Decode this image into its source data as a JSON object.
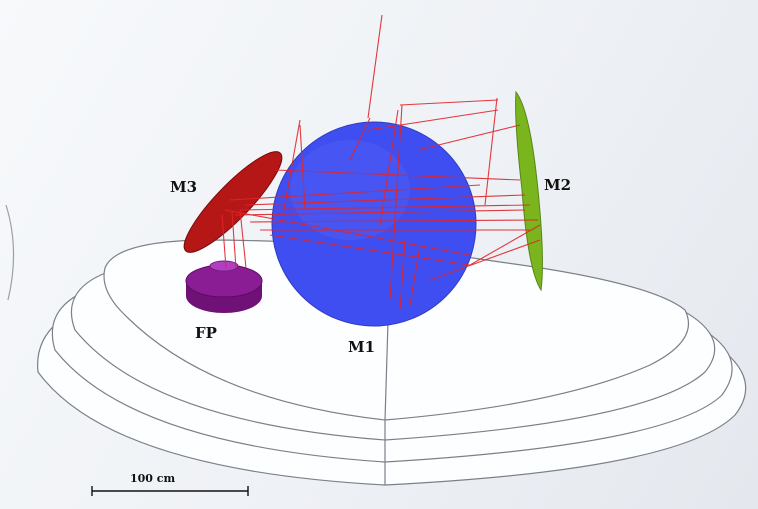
{
  "labels": {
    "m1": "M1",
    "m2": "M2",
    "m3": "M3",
    "fp": "FP"
  },
  "scale_bar": {
    "label": "100 cm"
  },
  "colors": {
    "m1": "#3f4ef0",
    "m2": "#7ab51e",
    "m3": "#b51616",
    "fp": "#8a1d93",
    "rays": "#e0252b",
    "base": "#fdfeff",
    "outline": "#7b8088"
  }
}
